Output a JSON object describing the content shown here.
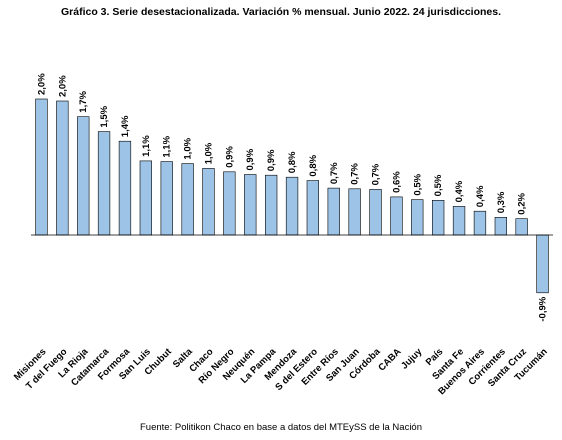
{
  "chart_data": {
    "type": "bar",
    "title": "Gráfico 3. Serie desestacionalizada. Variación % mensual. Junio 2022. 24 jurisdicciones.",
    "source": "Fuente: Politikon Chaco en base a datos del MTEySS de la Nación",
    "categories": [
      "Misiones",
      "T del Fuego",
      "La Rioja",
      "Catamarca",
      "Formosa",
      "San Luis",
      "Chubut",
      "Salta",
      "Chaco",
      "Río Negro",
      "Neuquén",
      "La Pampa",
      "Mendoza",
      "S del Estero",
      "Entre Ríos",
      "San Juan",
      "Córdoba",
      "CABA",
      "Jujuy",
      "País",
      "Santa Fe",
      "Buenos Aires",
      "Corrientes",
      "Santa Cruz",
      "Tucumán"
    ],
    "values": [
      2.0,
      1.97,
      1.74,
      1.52,
      1.38,
      1.09,
      1.08,
      1.05,
      0.98,
      0.93,
      0.89,
      0.88,
      0.85,
      0.8,
      0.69,
      0.68,
      0.67,
      0.56,
      0.52,
      0.51,
      0.42,
      0.35,
      0.26,
      0.24,
      -0.85
    ],
    "value_labels": [
      "2,0%",
      "2,0%",
      "1,7%",
      "1,5%",
      "1,4%",
      "1,1%",
      "1,1%",
      "1,0%",
      "1,0%",
      "0,9%",
      "0,9%",
      "0,9%",
      "0,8%",
      "0,8%",
      "0,7%",
      "0,7%",
      "0,7%",
      "0,6%",
      "0,5%",
      "0,5%",
      "0,4%",
      "0,4%",
      "0,3%",
      "0,2%",
      "-0,9%"
    ],
    "ylim": [
      -0.9,
      2.0
    ],
    "grid": false,
    "colors": {
      "bar": "#9dc3e6",
      "border": "#000000"
    }
  }
}
